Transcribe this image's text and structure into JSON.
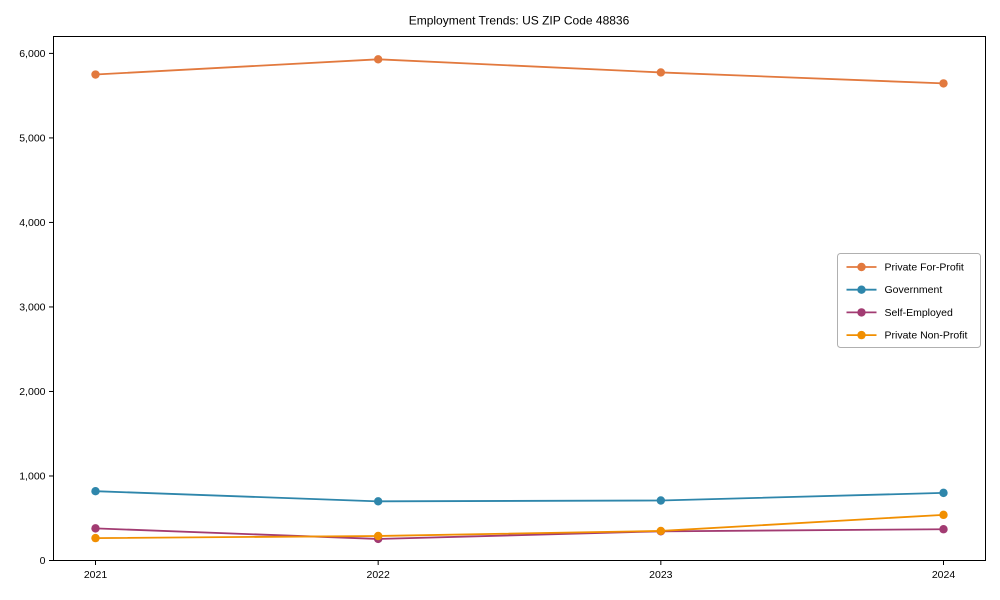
{
  "title": "Employment Trends: US ZIP Code 48836",
  "chart_data": {
    "type": "line",
    "title": "Employment Trends: US ZIP Code 48836",
    "x": [
      2021,
      2022,
      2023,
      2024
    ],
    "series": [
      {
        "name": "Private For-Profit",
        "color": "#E2793E",
        "values": [
          5750,
          5930,
          5775,
          5645
        ]
      },
      {
        "name": "Government",
        "color": "#2E86AB",
        "values": [
          820,
          700,
          710,
          800
        ]
      },
      {
        "name": "Self-Employed",
        "color": "#A23B72",
        "values": [
          380,
          255,
          345,
          370
        ]
      },
      {
        "name": "Private Non-Profit",
        "color": "#F18F01",
        "values": [
          265,
          290,
          350,
          540
        ]
      }
    ],
    "xlabel": "",
    "ylabel": "",
    "ylim": [
      0,
      6200
    ],
    "yticks": [
      0,
      1000,
      2000,
      3000,
      4000,
      5000,
      6000
    ],
    "ytick_labels": [
      "0",
      "1,000",
      "2,000",
      "3,000",
      "4,000",
      "5,000",
      "6,000"
    ],
    "grid": false,
    "marker": "o",
    "legend_position": "center right"
  }
}
